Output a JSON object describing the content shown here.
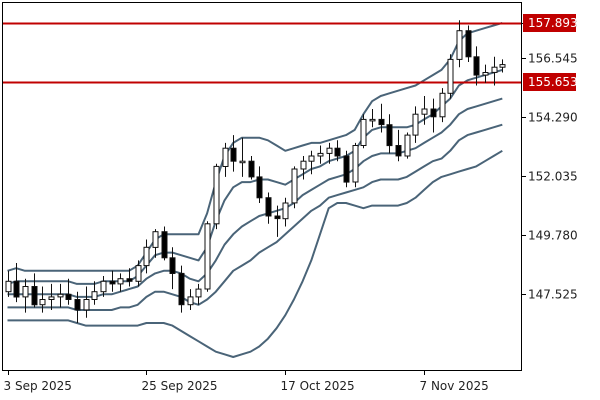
{
  "chart_data": {
    "type": "candlestick",
    "title": "",
    "xlabel": "",
    "ylabel": "",
    "ylim": [
      144.6,
      158.7
    ],
    "y_ticks": [
      "157.893",
      "156.545",
      "154.290",
      "152.035",
      "149.780",
      "147.525"
    ],
    "y_tick_values": [
      157.893,
      156.545,
      154.29,
      152.035,
      149.78,
      147.525
    ],
    "x_ticks": [
      "3 Sep 2025",
      "25 Sep 2025",
      "17 Oct 2025",
      "7 Nov 2025"
    ],
    "x_tick_index": [
      0,
      16,
      32,
      48
    ],
    "horizontal_lines": [
      {
        "label": "157.893",
        "value": 157.893
      },
      {
        "label": "155.653",
        "value": 155.653
      }
    ],
    "colors": {
      "up_candle": "#ffffff",
      "down_candle": "#000000",
      "candle_outline": "#111111",
      "band": "#4a6478",
      "level_line": "#c00000",
      "tag_bg": "#c00000",
      "axis": "#000000"
    },
    "candles": [
      [
        147.6,
        148.4,
        147.4,
        148.0
      ],
      [
        148.0,
        148.7,
        147.2,
        147.4
      ],
      [
        147.4,
        148.1,
        146.8,
        147.8
      ],
      [
        147.8,
        148.3,
        147.0,
        147.1
      ],
      [
        147.1,
        147.8,
        146.8,
        147.3
      ],
      [
        147.3,
        147.9,
        146.9,
        147.4
      ],
      [
        147.4,
        147.9,
        147.0,
        147.5
      ],
      [
        147.5,
        148.1,
        147.1,
        147.3
      ],
      [
        147.3,
        147.6,
        146.4,
        146.9
      ],
      [
        146.9,
        147.8,
        146.6,
        147.3
      ],
      [
        147.3,
        148.0,
        147.1,
        147.6
      ],
      [
        147.6,
        148.2,
        147.4,
        148.0
      ],
      [
        148.0,
        148.4,
        147.6,
        147.9
      ],
      [
        147.9,
        148.3,
        147.6,
        148.1
      ],
      [
        148.1,
        148.5,
        147.8,
        148.0
      ],
      [
        148.0,
        148.8,
        147.8,
        148.6
      ],
      [
        148.6,
        149.6,
        148.3,
        149.3
      ],
      [
        149.3,
        150.0,
        148.9,
        149.9
      ],
      [
        149.9,
        150.1,
        148.8,
        148.9
      ],
      [
        148.9,
        149.3,
        147.7,
        148.3
      ],
      [
        148.3,
        148.6,
        146.8,
        147.1
      ],
      [
        147.1,
        147.7,
        146.9,
        147.4
      ],
      [
        147.4,
        147.9,
        147.1,
        147.7
      ],
      [
        147.7,
        150.3,
        147.6,
        150.2
      ],
      [
        150.2,
        152.5,
        150.0,
        152.4
      ],
      [
        152.4,
        153.3,
        152.0,
        153.1
      ],
      [
        153.1,
        153.6,
        152.2,
        152.6
      ],
      [
        152.6,
        153.5,
        152.0,
        152.6
      ],
      [
        152.6,
        152.8,
        151.9,
        152.0
      ],
      [
        152.0,
        152.4,
        151.0,
        151.2
      ],
      [
        151.2,
        151.4,
        150.2,
        150.5
      ],
      [
        150.5,
        150.9,
        149.7,
        150.4
      ],
      [
        150.4,
        151.2,
        150.1,
        151.0
      ],
      [
        151.0,
        152.4,
        150.8,
        152.3
      ],
      [
        152.3,
        152.8,
        151.9,
        152.6
      ],
      [
        152.6,
        153.0,
        152.1,
        152.8
      ],
      [
        152.8,
        153.2,
        152.5,
        152.9
      ],
      [
        152.9,
        153.3,
        152.5,
        153.1
      ],
      [
        153.1,
        153.4,
        152.6,
        152.8
      ],
      [
        152.8,
        153.0,
        151.6,
        151.8
      ],
      [
        151.8,
        153.3,
        151.6,
        153.2
      ],
      [
        153.2,
        154.4,
        153.1,
        154.2
      ],
      [
        154.2,
        154.6,
        153.9,
        154.2
      ],
      [
        154.2,
        154.8,
        153.7,
        154.0
      ],
      [
        154.0,
        154.4,
        152.9,
        153.2
      ],
      [
        153.2,
        153.8,
        152.6,
        152.8
      ],
      [
        152.8,
        153.7,
        152.7,
        153.6
      ],
      [
        153.6,
        154.7,
        153.3,
        154.4
      ],
      [
        154.4,
        155.1,
        154.0,
        154.6
      ],
      [
        154.6,
        155.0,
        153.7,
        154.3
      ],
      [
        154.3,
        155.4,
        154.1,
        155.2
      ],
      [
        155.2,
        156.7,
        155.0,
        156.5
      ],
      [
        156.5,
        158.0,
        156.2,
        157.6
      ],
      [
        157.6,
        157.8,
        156.4,
        156.6
      ],
      [
        156.6,
        157.0,
        155.5,
        155.9
      ],
      [
        155.9,
        156.3,
        155.6,
        156.0
      ],
      [
        156.0,
        156.6,
        155.5,
        156.2
      ],
      [
        156.2,
        156.5,
        156.0,
        156.3
      ]
    ],
    "bands": {
      "upper2": [
        148.4,
        148.5,
        148.4,
        148.4,
        148.4,
        148.4,
        148.4,
        148.4,
        148.4,
        148.4,
        148.4,
        148.4,
        148.4,
        148.4,
        148.4,
        148.6,
        149.1,
        149.6,
        149.8,
        149.8,
        149.8,
        149.8,
        149.8,
        150.6,
        151.8,
        152.8,
        153.3,
        153.5,
        153.5,
        153.5,
        153.4,
        153.2,
        153.0,
        153.1,
        153.2,
        153.3,
        153.3,
        153.4,
        153.5,
        153.6,
        153.8,
        154.4,
        154.9,
        155.1,
        155.2,
        155.3,
        155.4,
        155.5,
        155.7,
        155.9,
        156.1,
        156.5,
        157.2,
        157.5,
        157.6,
        157.7,
        157.8,
        157.9
      ],
      "upper1": [
        147.9,
        148.0,
        148.0,
        148.0,
        148.0,
        148.0,
        148.0,
        148.0,
        147.9,
        147.9,
        147.9,
        148.0,
        148.0,
        148.0,
        148.0,
        148.2,
        148.6,
        149.0,
        149.1,
        149.1,
        149.0,
        148.9,
        148.8,
        149.3,
        150.3,
        151.1,
        151.6,
        151.8,
        151.8,
        151.9,
        151.9,
        151.8,
        151.7,
        151.9,
        152.1,
        152.3,
        152.4,
        152.6,
        152.7,
        152.8,
        153.0,
        153.5,
        153.8,
        153.9,
        153.9,
        153.9,
        153.9,
        154.0,
        154.2,
        154.4,
        154.7,
        155.0,
        155.5,
        155.7,
        155.8,
        155.9,
        156.0,
        156.1
      ],
      "mid": [
        147.5,
        147.5,
        147.5,
        147.5,
        147.5,
        147.5,
        147.5,
        147.5,
        147.4,
        147.4,
        147.4,
        147.5,
        147.5,
        147.6,
        147.7,
        147.8,
        148.1,
        148.3,
        148.4,
        148.4,
        148.3,
        148.1,
        148.0,
        148.3,
        148.8,
        149.4,
        149.8,
        150.1,
        150.3,
        150.5,
        150.6,
        150.7,
        150.8,
        151.0,
        151.3,
        151.5,
        151.7,
        151.9,
        152.0,
        152.1,
        152.3,
        152.6,
        152.8,
        152.9,
        152.9,
        152.9,
        153.0,
        153.1,
        153.3,
        153.5,
        153.7,
        154.0,
        154.4,
        154.6,
        154.7,
        154.8,
        154.9,
        155.0
      ],
      "lower1": [
        147.0,
        147.0,
        147.0,
        147.0,
        147.0,
        147.0,
        147.0,
        147.0,
        146.9,
        146.9,
        146.9,
        146.9,
        146.9,
        147.0,
        147.0,
        147.1,
        147.4,
        147.6,
        147.6,
        147.5,
        147.4,
        147.2,
        147.1,
        147.3,
        147.6,
        148.0,
        148.4,
        148.6,
        148.8,
        149.1,
        149.3,
        149.5,
        149.8,
        150.1,
        150.4,
        150.7,
        150.9,
        151.2,
        151.3,
        151.4,
        151.5,
        151.6,
        151.8,
        151.9,
        151.9,
        151.9,
        152.0,
        152.2,
        152.4,
        152.6,
        152.7,
        153.0,
        153.4,
        153.6,
        153.7,
        153.8,
        153.9,
        154.0
      ],
      "lower2": [
        146.5,
        146.5,
        146.5,
        146.5,
        146.5,
        146.5,
        146.5,
        146.5,
        146.4,
        146.3,
        146.3,
        146.3,
        146.3,
        146.3,
        146.3,
        146.3,
        146.4,
        146.4,
        146.4,
        146.3,
        146.1,
        145.9,
        145.7,
        145.5,
        145.3,
        145.2,
        145.1,
        145.2,
        145.3,
        145.5,
        145.8,
        146.2,
        146.7,
        147.3,
        148.0,
        148.8,
        149.8,
        150.8,
        151.0,
        151.0,
        150.9,
        150.8,
        150.9,
        150.9,
        150.9,
        150.9,
        151.0,
        151.2,
        151.5,
        151.8,
        152.0,
        152.1,
        152.2,
        152.3,
        152.4,
        152.6,
        152.8,
        153.0
      ]
    }
  }
}
